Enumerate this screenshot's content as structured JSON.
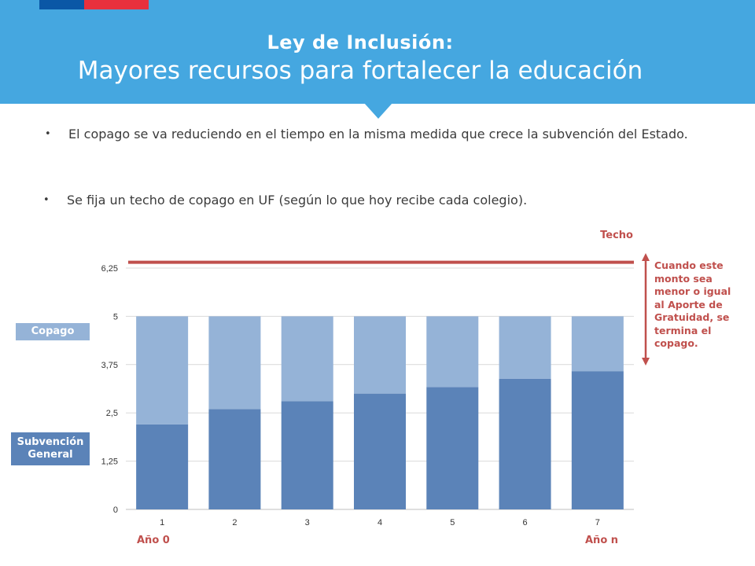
{
  "header": {
    "title": "Ley de Inclusión:",
    "subtitle": "Mayores recursos para fortalecer la educación",
    "colors": {
      "background": "#45a7e0",
      "flag_blue": "#0a57a6",
      "flag_red": "#e8303d"
    }
  },
  "bullets": [
    {
      "text": "El copago se va reduciendo en el tiempo en la misma medida que crece la subvención del Estado."
    },
    {
      "text": "Se fija un techo de copago en UF (según lo que hoy recibe cada colegio)."
    }
  ],
  "labels": {
    "techo": "Techo",
    "note": "Cuando este monto sea menor o igual al Aporte de Gratuidad, se termina el copago.",
    "copago": "Copago",
    "subvencion_line1": "Subvención",
    "subvencion_line2": "General",
    "year_start": "Año 0",
    "year_end": "Año n"
  },
  "chart_data": {
    "type": "bar",
    "stacked": true,
    "categories": [
      "1",
      "2",
      "3",
      "4",
      "5",
      "6",
      "7"
    ],
    "series": [
      {
        "name": "Subvención General",
        "color": "#5b83b8",
        "values": [
          2.2,
          2.6,
          2.8,
          3.0,
          3.17,
          3.38,
          3.58
        ]
      },
      {
        "name": "Copago",
        "color": "#95b3d7",
        "values": [
          2.8,
          2.4,
          2.2,
          2.0,
          1.83,
          1.62,
          1.42
        ]
      }
    ],
    "ylim": [
      0,
      6.25
    ],
    "yticks": [
      "0",
      "1,25",
      "2,5",
      "3,75",
      "5",
      "6,25"
    ],
    "ytick_values": [
      0,
      1.25,
      2.5,
      3.75,
      5,
      6.25
    ],
    "ceiling": {
      "value": 6.4,
      "color": "#c0504d"
    },
    "grid": true,
    "legend": "left-side tags"
  }
}
